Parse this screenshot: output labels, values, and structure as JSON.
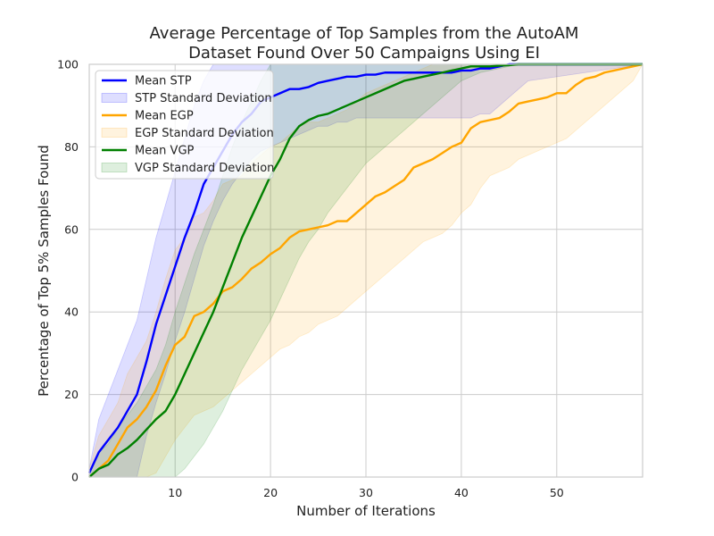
{
  "chart_data": {
    "type": "line",
    "title_lines": [
      "Average Percentage of Top Samples from the AutoAM",
      "Dataset Found Over 50 Campaigns Using EI"
    ],
    "xlabel": "Number of Iterations",
    "ylabel": "Percentage of Top 5% Samples Found",
    "xlim": [
      1,
      59
    ],
    "ylim": [
      0,
      100
    ],
    "xticks": [
      10,
      20,
      30,
      40,
      50
    ],
    "yticks": [
      0,
      20,
      40,
      60,
      80,
      100
    ],
    "grid": true,
    "legend_position": "top-left",
    "series": [
      {
        "name": "Mean STP",
        "band_name": "STP Standard Deviation",
        "color": "#0000ff",
        "x": [
          1,
          2,
          3,
          4,
          5,
          6,
          7,
          8,
          9,
          10,
          11,
          12,
          13,
          14,
          15,
          16,
          17,
          18,
          19,
          20,
          21,
          22,
          23,
          24,
          25,
          26,
          27,
          28,
          29,
          30,
          31,
          32,
          33,
          34,
          35,
          36,
          37,
          38,
          39,
          40,
          41,
          42,
          43,
          44,
          45,
          46,
          47,
          59
        ],
        "mean": [
          1,
          6,
          9,
          12,
          16,
          20,
          28,
          37,
          44,
          51,
          58,
          64,
          71,
          75,
          79,
          83,
          86,
          88,
          91,
          92,
          93,
          94,
          94,
          94.5,
          95.5,
          96,
          96.5,
          97,
          97,
          97.5,
          97.5,
          98,
          98,
          98,
          98,
          98,
          98,
          98,
          98,
          98.5,
          98.5,
          99,
          99,
          99.5,
          100,
          100,
          100,
          100
        ],
        "lower": [
          0,
          0,
          0,
          0,
          0,
          0,
          10,
          18,
          25,
          33,
          40,
          48,
          56,
          62,
          67,
          71,
          74,
          77,
          79,
          80,
          81,
          82,
          83,
          84,
          85,
          85,
          86,
          86,
          87,
          87,
          87,
          87,
          87,
          87,
          87,
          87,
          87,
          87,
          87,
          87,
          87,
          88,
          88,
          90,
          92,
          94,
          96,
          100
        ],
        "upper": [
          2,
          14,
          20,
          26,
          32,
          38,
          48,
          58,
          66,
          74,
          82,
          90,
          96,
          100,
          100,
          100,
          100,
          100,
          100,
          100,
          100,
          100,
          100,
          100,
          100,
          100,
          100,
          100,
          100,
          100,
          100,
          100,
          100,
          100,
          100,
          100,
          100,
          100,
          100,
          100,
          100,
          100,
          100,
          100,
          100,
          100,
          100,
          100
        ]
      },
      {
        "name": "Mean EGP",
        "band_name": "EGP Standard Deviation",
        "color": "#ffa500",
        "x": [
          1,
          2,
          3,
          4,
          5,
          6,
          7,
          8,
          9,
          10,
          11,
          12,
          13,
          14,
          15,
          16,
          17,
          18,
          19,
          20,
          21,
          22,
          23,
          24,
          25,
          26,
          27,
          28,
          29,
          30,
          31,
          32,
          33,
          34,
          35,
          36,
          37,
          38,
          39,
          40,
          41,
          42,
          43,
          44,
          45,
          46,
          47,
          48,
          49,
          50,
          51,
          52,
          53,
          54,
          55,
          56,
          57,
          58,
          59
        ],
        "mean": [
          0,
          2,
          4,
          8,
          12,
          14,
          17,
          21,
          27,
          32,
          34,
          39,
          40,
          42,
          45,
          46,
          48,
          50.5,
          52,
          54,
          55.5,
          58,
          59.5,
          60,
          60.5,
          61,
          62,
          62,
          64,
          66,
          68,
          69,
          70.5,
          72,
          75,
          76,
          77,
          78.5,
          80,
          81,
          84.5,
          86,
          86.5,
          87,
          88.5,
          90.5,
          91,
          91.5,
          92,
          93,
          93,
          95,
          96.5,
          97,
          98,
          98.5,
          99,
          99.5,
          100
        ],
        "lower": [
          0,
          0,
          0,
          0,
          0,
          0,
          0,
          1,
          5,
          9,
          12,
          15,
          16,
          17,
          19,
          21,
          23,
          25,
          27,
          29,
          31,
          32,
          34,
          35,
          37,
          38,
          39,
          41,
          43,
          45,
          47,
          49,
          51,
          53,
          55,
          57,
          58,
          59,
          61,
          64,
          66,
          70,
          73,
          74,
          75,
          77,
          78,
          79,
          80,
          81,
          82,
          84,
          86,
          88,
          90,
          92,
          94,
          96,
          100
        ],
        "upper": [
          2,
          10,
          14,
          18,
          25,
          29,
          33,
          40,
          48,
          55,
          58,
          63,
          64,
          67,
          71,
          72,
          73,
          76,
          78,
          80,
          81,
          83,
          85,
          86,
          86,
          87,
          88,
          89,
          91,
          93,
          94,
          95,
          96,
          97,
          98,
          99,
          100,
          100,
          100,
          100,
          100,
          100,
          100,
          100,
          100,
          100,
          100,
          100,
          100,
          100,
          100,
          100,
          100,
          100,
          100,
          100,
          100,
          100,
          100
        ]
      },
      {
        "name": "Mean VGP",
        "band_name": "VGP Standard Deviation",
        "color": "#008000",
        "x": [
          1,
          2,
          3,
          4,
          5,
          6,
          7,
          8,
          9,
          10,
          11,
          12,
          13,
          14,
          15,
          16,
          17,
          18,
          19,
          20,
          21,
          22,
          23,
          24,
          25,
          26,
          27,
          28,
          29,
          30,
          31,
          32,
          33,
          34,
          35,
          36,
          37,
          38,
          39,
          40,
          41,
          42,
          43,
          44,
          45,
          46,
          47,
          59
        ],
        "mean": [
          0,
          2,
          3,
          5.5,
          7,
          9,
          11.5,
          14,
          16,
          20,
          25,
          30,
          35,
          40,
          46,
          52,
          58,
          63,
          68,
          73,
          77,
          82,
          85,
          86.5,
          87.5,
          88,
          89,
          90,
          91,
          92,
          93,
          94,
          95,
          96,
          96.5,
          97,
          97.5,
          98,
          98.5,
          99,
          99.5,
          99.5,
          99.5,
          99.7,
          99.8,
          100,
          100,
          100
        ],
        "lower": [
          0,
          0,
          0,
          0,
          0,
          0,
          0,
          0,
          0,
          0,
          2,
          5,
          8,
          12,
          16,
          21,
          26,
          30,
          34,
          38,
          43,
          48,
          53,
          57,
          60,
          64,
          67,
          70,
          73,
          76,
          78,
          80,
          82,
          84,
          86,
          88,
          90,
          92,
          94,
          96,
          97,
          98,
          98.5,
          99,
          99.5,
          100,
          100,
          100
        ],
        "upper": [
          1,
          6,
          8,
          12,
          15,
          18,
          22,
          26,
          32,
          40,
          47,
          54,
          60,
          66,
          73,
          80,
          86,
          91,
          96,
          100,
          100,
          100,
          100,
          100,
          100,
          100,
          100,
          100,
          100,
          100,
          100,
          100,
          100,
          100,
          100,
          100,
          100,
          100,
          100,
          100,
          100,
          100,
          100,
          100,
          100,
          100,
          100,
          100
        ]
      }
    ],
    "band_opacity": 0.13
  }
}
